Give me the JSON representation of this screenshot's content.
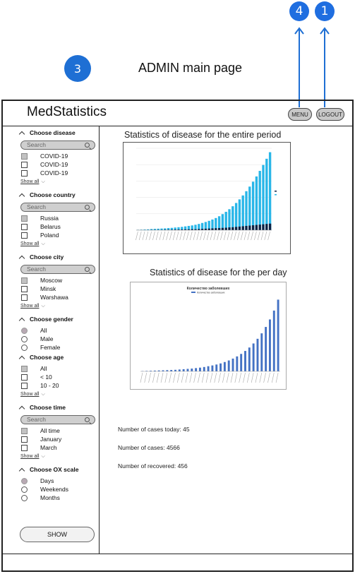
{
  "annotations": [
    {
      "label": "4"
    },
    {
      "label": "1"
    },
    {
      "label": "3"
    }
  ],
  "page_heading": "ADMIN main page",
  "app": {
    "logo": "MedStatistics",
    "menu_label": "MENU",
    "logout_label": "LOGOUT"
  },
  "filters": {
    "disease": {
      "title": "Choose disease",
      "search_placeholder": "Search",
      "options": [
        "COVID-19",
        "COVID-19",
        "COVID-19"
      ],
      "show_all": "Show all"
    },
    "country": {
      "title": "Choose country",
      "search_placeholder": "Search",
      "options": [
        "Russia",
        "Belarus",
        "Poland"
      ],
      "show_all": "Show all"
    },
    "city": {
      "title": "Choose city",
      "search_placeholder": "Search",
      "options": [
        "Moscow",
        "Minsk",
        "Warshawa"
      ],
      "show_all": "Show all"
    },
    "gender": {
      "title": "Choose gender",
      "options": [
        "All",
        "Male",
        "Female"
      ]
    },
    "age": {
      "title": "Choose age",
      "options": [
        "All",
        "< 10",
        "10 - 20"
      ],
      "show_all": "Show all"
    },
    "time": {
      "title": "Choose time",
      "search_placeholder": "Search",
      "options": [
        "All time",
        "January",
        "March"
      ],
      "show_all": "Show all"
    },
    "ox_scale": {
      "title": "Choose OX scale",
      "options": [
        "Days",
        "Weekends",
        "Months"
      ]
    },
    "show_button": "SHOW"
  },
  "charts": {
    "entire_title": "Statistics of disease for the entire period",
    "per_day_title": "Statistics of disease for the per day",
    "per_day_inner_title": "Количество заболевших",
    "per_day_legend": "Количество заболевших"
  },
  "stats": {
    "today": "Number of cases today: 45",
    "total": "Number of cases: 4566",
    "recovered": "Number of recovered: 456"
  },
  "colors": {
    "accent": "#1e6fd4",
    "bar_light": "#29b6e8",
    "bar_dark": "#0d2244",
    "bar_blue": "#4472c4"
  },
  "chart_data": [
    {
      "type": "bar",
      "title": "Statistics of disease for the entire period",
      "series": [
        {
          "values": [
            2,
            3,
            4,
            5,
            7,
            8,
            9,
            10,
            11,
            13,
            14,
            16,
            18,
            20,
            23,
            26,
            29,
            33,
            38,
            44,
            50,
            57,
            65,
            74,
            85,
            98,
            112,
            128,
            146,
            166,
            188,
            212,
            238,
            266,
            296,
            328,
            362,
            398,
            436,
            476
          ]
        },
        {
          "values": [
            1,
            1,
            1,
            1,
            2,
            2,
            2,
            2,
            3,
            3,
            3,
            4,
            4,
            4,
            5,
            5,
            6,
            6,
            7,
            8,
            9,
            10,
            11,
            12,
            13,
            14,
            15,
            17,
            18,
            20,
            22,
            24,
            26,
            28,
            30,
            32,
            34,
            36,
            38,
            40
          ]
        }
      ]
    },
    {
      "type": "bar",
      "title": "Количество заболевших",
      "series": [
        {
          "name": "Количество заболевших",
          "values": [
            2,
            3,
            4,
            5,
            6,
            7,
            8,
            9,
            10,
            12,
            14,
            16,
            18,
            21,
            24,
            28,
            33,
            38,
            44,
            51,
            60,
            70,
            82,
            96,
            112,
            131,
            153,
            179,
            209,
            244,
            285,
            333,
            390,
            460
          ]
        }
      ]
    }
  ]
}
